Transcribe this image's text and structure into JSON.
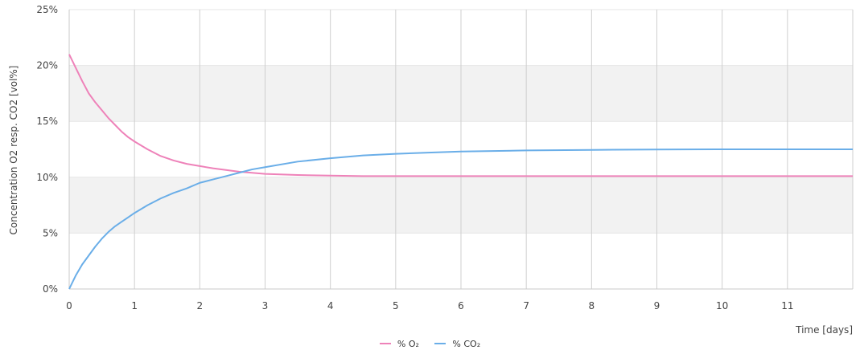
{
  "chart_data": {
    "type": "line",
    "xlabel": "Time [days]",
    "ylabel": "Concentration O2 resp. CO2 [vol%]",
    "xlim": [
      0,
      12
    ],
    "ylim": [
      0,
      25
    ],
    "x_ticks": [
      "0",
      "1",
      "2",
      "3",
      "4",
      "5",
      "6",
      "7",
      "8",
      "9",
      "10",
      "11"
    ],
    "y_ticks": [
      "0%",
      "5%",
      "10%",
      "15%",
      "20%",
      "25%"
    ],
    "grid": true,
    "legend_position": "bottom",
    "series": [
      {
        "name": "% O₂",
        "color": "#ee82b9",
        "x": [
          0,
          0.1,
          0.2,
          0.3,
          0.4,
          0.5,
          0.6,
          0.7,
          0.8,
          0.9,
          1.0,
          1.2,
          1.4,
          1.6,
          1.8,
          2.0,
          2.2,
          2.4,
          2.6,
          2.8,
          3.0,
          3.5,
          4.0,
          4.5,
          5,
          6,
          7,
          8,
          9,
          10,
          11,
          12
        ],
        "values": [
          21.0,
          19.8,
          18.6,
          17.5,
          16.7,
          16.0,
          15.3,
          14.7,
          14.1,
          13.6,
          13.2,
          12.5,
          11.9,
          11.5,
          11.2,
          11.0,
          10.8,
          10.65,
          10.5,
          10.4,
          10.3,
          10.2,
          10.15,
          10.1,
          10.1,
          10.1,
          10.1,
          10.1,
          10.1,
          10.1,
          10.1,
          10.1
        ]
      },
      {
        "name": "% CO₂",
        "color": "#6aaee8",
        "x": [
          0,
          0.1,
          0.2,
          0.3,
          0.4,
          0.5,
          0.6,
          0.7,
          0.8,
          0.9,
          1.0,
          1.2,
          1.4,
          1.6,
          1.8,
          2.0,
          2.2,
          2.4,
          2.6,
          2.8,
          3.0,
          3.5,
          4.0,
          4.5,
          5,
          5.5,
          6,
          7,
          8,
          9,
          10,
          11,
          12
        ],
        "values": [
          0,
          1.2,
          2.2,
          3.0,
          3.8,
          4.5,
          5.1,
          5.6,
          6.0,
          6.4,
          6.8,
          7.5,
          8.1,
          8.6,
          9.0,
          9.5,
          9.8,
          10.1,
          10.4,
          10.7,
          10.9,
          11.4,
          11.7,
          11.95,
          12.1,
          12.2,
          12.3,
          12.4,
          12.45,
          12.48,
          12.5,
          12.5,
          12.5
        ]
      }
    ]
  }
}
